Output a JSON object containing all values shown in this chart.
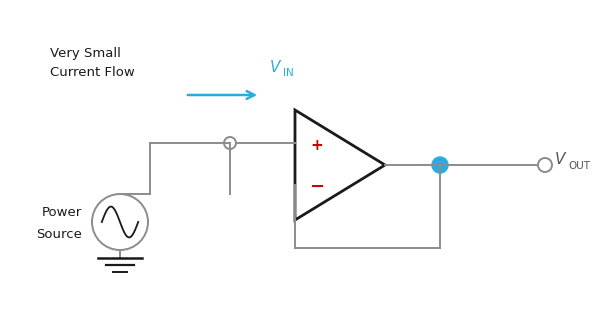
{
  "bg_color": "#ffffff",
  "line_color": "#8c8c8c",
  "op_amp_color": "#1a1a1a",
  "arrow_color": "#29abe2",
  "dot_color": "#29abe2",
  "plus_color": "#cc0000",
  "minus_color": "#cc0000",
  "vin_color": "#29abe2",
  "vout_color": "#555555",
  "text_color": "#1a1a1a",
  "label_very_small": "Very Small",
  "label_current_flow": "Current Flow",
  "label_vin": "V",
  "label_vin_sub": "IN",
  "label_vout": "V",
  "label_vout_sub": "OUT",
  "label_power": "Power",
  "label_source": "Source",
  "label_plus": "+",
  "label_minus": "−",
  "figsize": [
    6.0,
    3.13
  ],
  "dpi": 100
}
